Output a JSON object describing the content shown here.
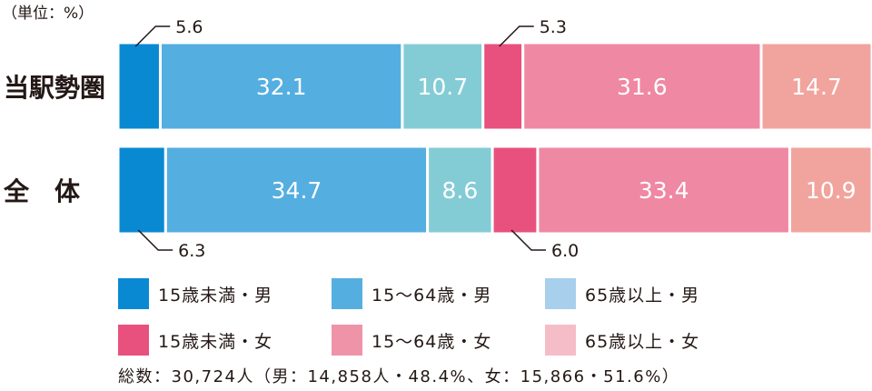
{
  "unit_label": "（単位：%）",
  "chart_data": {
    "type": "bar",
    "orientation": "horizontal",
    "stacked": true,
    "normalized": true,
    "categories": [
      "当駅勢圏",
      "全　体"
    ],
    "series": [
      {
        "name": "15歳未満・男",
        "color": "#0a89d3",
        "values": [
          5.6,
          6.3
        ]
      },
      {
        "name": "15〜64歳・男",
        "color": "#55aee0",
        "values": [
          32.1,
          34.7
        ]
      },
      {
        "name": "65歳以上・男",
        "color": "#84ccd5",
        "values": [
          10.7,
          8.6
        ]
      },
      {
        "name": "15歳未満・女",
        "color": "#e8517e",
        "values": [
          5.3,
          6.0
        ]
      },
      {
        "name": "15〜64歳・女",
        "color": "#ef88a3",
        "values": [
          31.6,
          33.4
        ]
      },
      {
        "name": "65歳以上・女",
        "color": "#f1a49d",
        "values": [
          14.7,
          10.9
        ]
      }
    ],
    "outside_labels": [
      {
        "category": 0,
        "series": 0,
        "position": "above"
      },
      {
        "category": 0,
        "series": 3,
        "position": "above"
      },
      {
        "category": 1,
        "series": 0,
        "position": "below"
      },
      {
        "category": 1,
        "series": 3,
        "position": "below"
      }
    ]
  },
  "legend": [
    {
      "label": "15歳未満・男",
      "color": "#0a89d3"
    },
    {
      "label": "15〜64歳・男",
      "color": "#55aee0"
    },
    {
      "label": "65歳以上・男",
      "color": "#a8cfec"
    },
    {
      "label": "15歳未満・女",
      "color": "#e8517e"
    },
    {
      "label": "15〜64歳・女",
      "color": "#ef93a9"
    },
    {
      "label": "65歳以上・女",
      "color": "#f5bdc8"
    }
  ],
  "total_note": "総数：30,724人（男：14,858人・48.4%、女：15,866・51.6%）"
}
